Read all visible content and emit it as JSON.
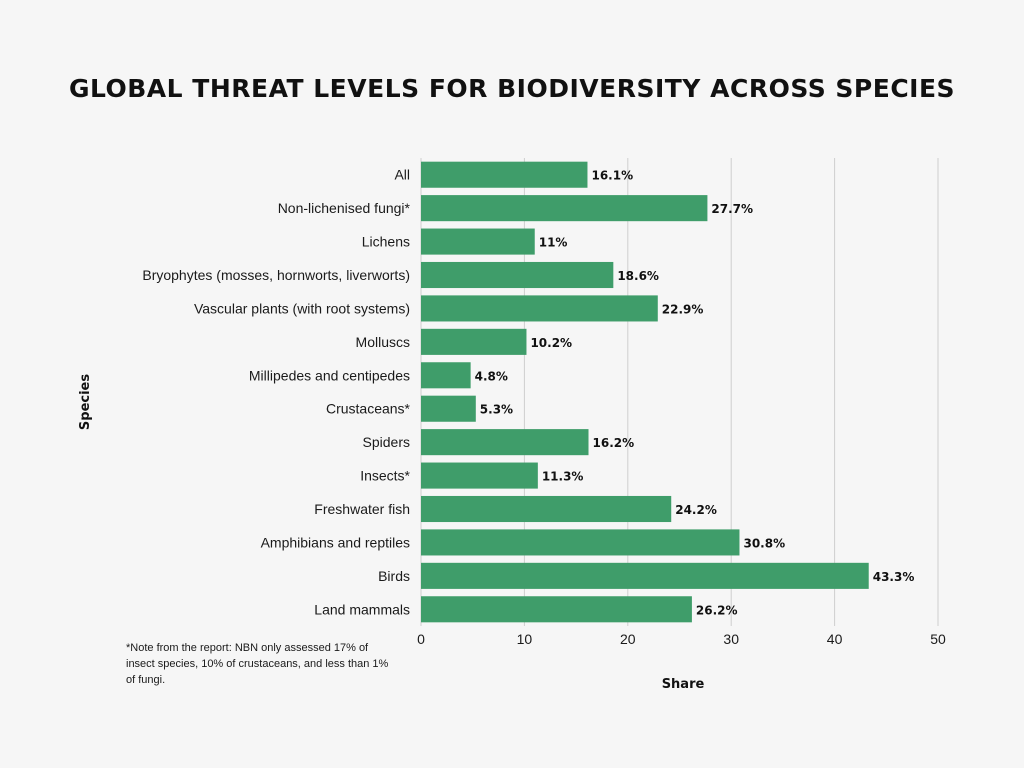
{
  "chart_data": {
    "type": "bar",
    "orientation": "horizontal",
    "title": "GLOBAL THREAT LEVELS FOR BIODIVERSITY ACROSS SPECIES",
    "xlabel": "Share",
    "ylabel": "Species",
    "xlim": [
      0,
      50
    ],
    "xticks": [
      0,
      10,
      20,
      30,
      40,
      50
    ],
    "grid": true,
    "bar_color": "#3f9d6a",
    "categories": [
      "All",
      "Non-lichenised fungi*",
      "Lichens",
      "Bryophytes (mosses, hornworts, liverworts)",
      "Vascular plants (with root systems)",
      "Molluscs",
      "Millipedes and centipedes",
      "Crustaceans*",
      "Spiders",
      "Insects*",
      "Freshwater fish",
      "Amphibians and reptiles",
      "Birds",
      "Land mammals"
    ],
    "values": [
      16.1,
      27.7,
      11,
      18.6,
      22.9,
      10.2,
      4.8,
      5.3,
      16.2,
      11.3,
      24.2,
      30.8,
      43.3,
      26.2
    ],
    "value_labels": [
      "16.1%",
      "27.7%",
      "11%",
      "18.6%",
      "22.9%",
      "10.2%",
      "4.8%",
      "5.3%",
      "16.2%",
      "11.3%",
      "24.2%",
      "30.8%",
      "43.3%",
      "26.2%"
    ]
  },
  "footnote": {
    "lines": [
      "*Note from the report: NBN only assessed 17% of",
      "insect species, 10% of crustaceans, and less than 1%",
      "of fungi."
    ]
  }
}
